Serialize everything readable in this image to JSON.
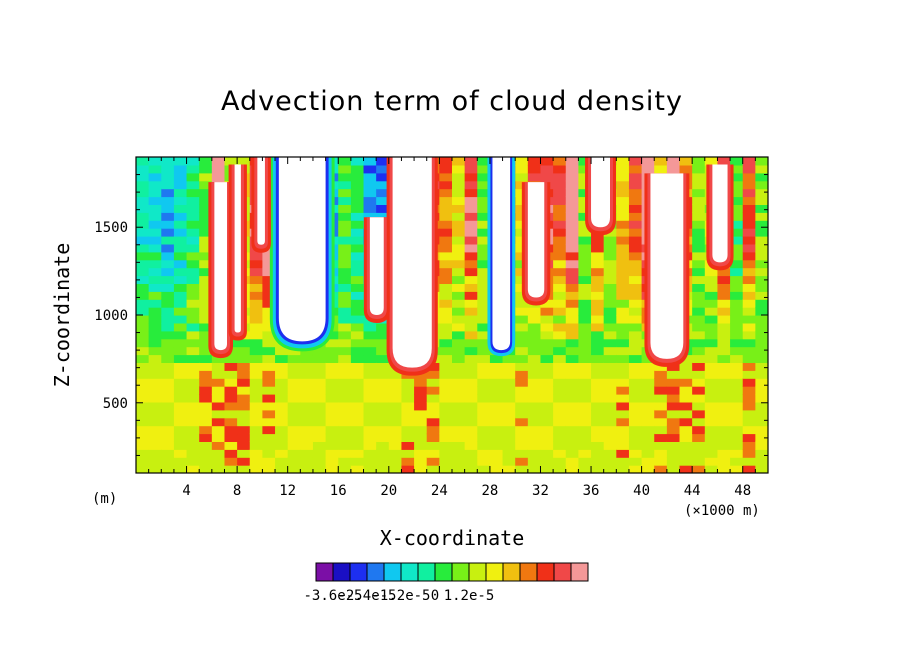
{
  "chart_data": {
    "type": "heatmap",
    "title": "Advection term of cloud density",
    "xlabel": "X-coordinate",
    "ylabel": "Z-coordinate",
    "x_unit": "(×1000 m)",
    "z_unit": "(m)",
    "xlim": [
      0,
      50
    ],
    "ylim": [
      100,
      1900
    ],
    "x_ticks": [
      4,
      8,
      12,
      16,
      20,
      24,
      28,
      32,
      36,
      40,
      44,
      48
    ],
    "y_ticks": [
      500,
      1000,
      1500
    ],
    "colorbar": {
      "colors": [
        "#7b0fa6",
        "#1a0fc4",
        "#1d2ff0",
        "#1f78f0",
        "#10c8f0",
        "#10e8c8",
        "#10f0a0",
        "#28ec3c",
        "#78f018",
        "#c8f010",
        "#f0f010",
        "#f0c010",
        "#f07810",
        "#f03018",
        "#f04848",
        "#f49898"
      ],
      "tick_labels": [
        "-3.6e-5",
        "-2.4e-5",
        "-1.2e-5",
        "0",
        "1.2e-5"
      ],
      "tick_values": [
        -3.6e-05,
        -2.4e-05,
        -1.2e-05,
        0,
        1.2e-05
      ],
      "level_min": -4.2e-05,
      "level_step": 6e-06
    },
    "upper_structure": [
      {
        "x": 0,
        "level": 5
      },
      {
        "x": 1,
        "level": 5
      },
      {
        "x": 2,
        "level": 4
      },
      {
        "x": 3,
        "level": 5
      },
      {
        "x": 4,
        "level": 6
      },
      {
        "x": 5,
        "level": 8
      },
      {
        "x": 6,
        "level": 16
      },
      {
        "x": 7,
        "level": 9
      },
      {
        "x": 8,
        "level": 10
      },
      {
        "x": 9,
        "level": 14
      },
      {
        "x": 10,
        "level": 16
      },
      {
        "x": 11,
        "level": 12
      },
      {
        "x": 12,
        "level": 16
      },
      {
        "x": 13,
        "level": 16
      },
      {
        "x": 14,
        "level": 2
      },
      {
        "x": 15,
        "level": 4
      },
      {
        "x": 16,
        "level": 7
      },
      {
        "x": 17,
        "level": 6
      },
      {
        "x": 18,
        "level": 3
      },
      {
        "x": 19,
        "level": 3
      },
      {
        "x": 20,
        "level": 16
      },
      {
        "x": 21,
        "level": 16
      },
      {
        "x": 22,
        "level": 16
      },
      {
        "x": 23,
        "level": 13
      },
      {
        "x": 24,
        "level": 12
      },
      {
        "x": 25,
        "level": 10
      },
      {
        "x": 26,
        "level": 14
      },
      {
        "x": 27,
        "level": 8
      },
      {
        "x": 28,
        "level": 16
      },
      {
        "x": 29,
        "level": 2
      },
      {
        "x": 30,
        "level": 10
      },
      {
        "x": 31,
        "level": 13
      },
      {
        "x": 32,
        "level": 14
      },
      {
        "x": 33,
        "level": 13
      },
      {
        "x": 34,
        "level": 16
      },
      {
        "x": 35,
        "level": 8
      },
      {
        "x": 36,
        "level": 12
      },
      {
        "x": 37,
        "level": 9
      },
      {
        "x": 38,
        "level": 11
      },
      {
        "x": 39,
        "level": 13
      },
      {
        "x": 40,
        "level": 16
      },
      {
        "x": 41,
        "level": 10
      },
      {
        "x": 42,
        "level": 16
      },
      {
        "x": 43,
        "level": 12
      },
      {
        "x": 44,
        "level": 8
      },
      {
        "x": 45,
        "level": 9
      },
      {
        "x": 46,
        "level": 14
      },
      {
        "x": 47,
        "level": 7
      },
      {
        "x": 48,
        "level": 13
      },
      {
        "x": 49,
        "level": 8
      }
    ],
    "white_regions": [
      {
        "x0": 11.3,
        "x1": 15.0,
        "z_bottom": 850,
        "z_top": 1900
      },
      {
        "x0": 20.3,
        "x1": 23.4,
        "z_bottom": 700,
        "z_top": 1900
      },
      {
        "x0": 28.2,
        "x1": 29.6,
        "z_bottom": 800,
        "z_top": 1900
      },
      {
        "x0": 6.2,
        "x1": 7.2,
        "z_bottom": 800,
        "z_top": 1700
      },
      {
        "x0": 7.8,
        "x1": 8.3,
        "z_bottom": 900,
        "z_top": 1800
      },
      {
        "x0": 9.6,
        "x1": 10.2,
        "z_bottom": 1400,
        "z_top": 1900
      },
      {
        "x0": 18.5,
        "x1": 19.6,
        "z_bottom": 1000,
        "z_top": 1500
      },
      {
        "x0": 31.0,
        "x1": 32.3,
        "z_bottom": 1100,
        "z_top": 1700
      },
      {
        "x0": 36.0,
        "x1": 37.5,
        "z_bottom": 1500,
        "z_top": 1900
      },
      {
        "x0": 40.7,
        "x1": 43.3,
        "z_bottom": 750,
        "z_top": 1750
      },
      {
        "x0": 45.6,
        "x1": 46.8,
        "z_bottom": 1300,
        "z_top": 1800
      }
    ],
    "lower_structure": "near-zero values (yellow / yellow-green) below 700 m with red streaks at 6, 8, 21-23, 41-44 km"
  }
}
